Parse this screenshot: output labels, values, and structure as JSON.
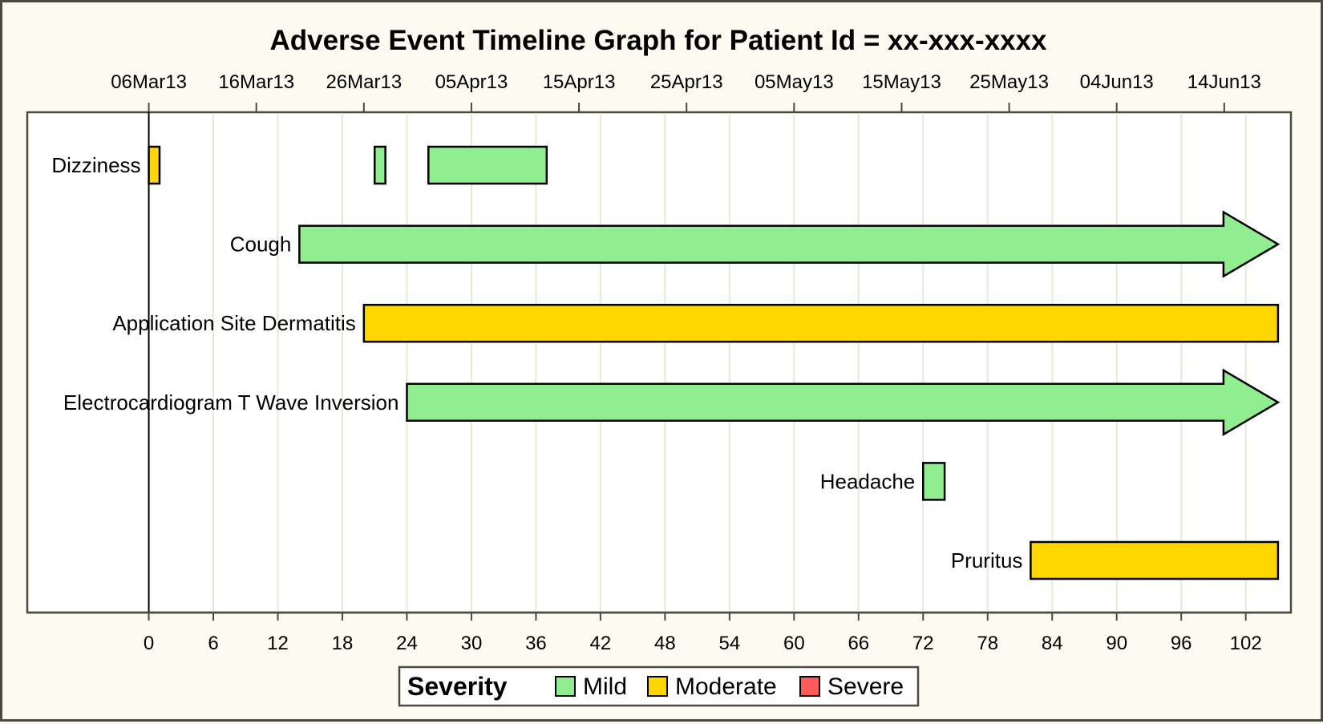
{
  "chart_data": {
    "type": "timeline",
    "title": "Adverse Event Timeline Graph for Patient Id = xx-xxx-xxxx",
    "x_axis": {
      "ticks": [
        0,
        6,
        12,
        18,
        24,
        30,
        36,
        42,
        48,
        54,
        60,
        66,
        72,
        78,
        84,
        90,
        96,
        102
      ],
      "range": [
        -11.3,
        106.2
      ],
      "grid": true
    },
    "x2_axis": {
      "ticks": [
        {
          "day": 0,
          "label": "06Mar13"
        },
        {
          "day": 10,
          "label": "16Mar13"
        },
        {
          "day": 20,
          "label": "26Mar13"
        },
        {
          "day": 30,
          "label": "05Apr13"
        },
        {
          "day": 40,
          "label": "15Apr13"
        },
        {
          "day": 50,
          "label": "25Apr13"
        },
        {
          "day": 60,
          "label": "05May13"
        },
        {
          "day": 70,
          "label": "15May13"
        },
        {
          "day": 80,
          "label": "25May13"
        },
        {
          "day": 90,
          "label": "04Jun13"
        },
        {
          "day": 100,
          "label": "14Jun13"
        }
      ]
    },
    "reference_line": 0,
    "events": [
      {
        "label": "Dizziness",
        "segments": [
          {
            "start": 0,
            "end": 1,
            "severity": "Moderate"
          },
          {
            "start": 21,
            "end": 22,
            "severity": "Mild"
          },
          {
            "start": 26,
            "end": 37,
            "severity": "Mild"
          }
        ]
      },
      {
        "label": "Cough",
        "segments": [
          {
            "start": 14,
            "end": 105,
            "severity": "Mild",
            "ongoing": true
          }
        ]
      },
      {
        "label": "Application Site Dermatitis",
        "segments": [
          {
            "start": 20,
            "end": 105,
            "severity": "Moderate"
          }
        ]
      },
      {
        "label": "Electrocardiogram T Wave Inversion",
        "segments": [
          {
            "start": 24,
            "end": 105,
            "severity": "Mild",
            "ongoing": true
          }
        ]
      },
      {
        "label": "Headache",
        "segments": [
          {
            "start": 72,
            "end": 74,
            "severity": "Mild"
          }
        ]
      },
      {
        "label": "Pruritus",
        "segments": [
          {
            "start": 82,
            "end": 105,
            "severity": "Moderate"
          }
        ]
      }
    ],
    "legend": {
      "title": "Severity",
      "placement": "bottom-center",
      "items": [
        {
          "name": "Mild",
          "color": "#90ee90"
        },
        {
          "name": "Moderate",
          "color": "#ffd700"
        },
        {
          "name": "Severe",
          "color": "#ff5a5a"
        }
      ]
    }
  }
}
